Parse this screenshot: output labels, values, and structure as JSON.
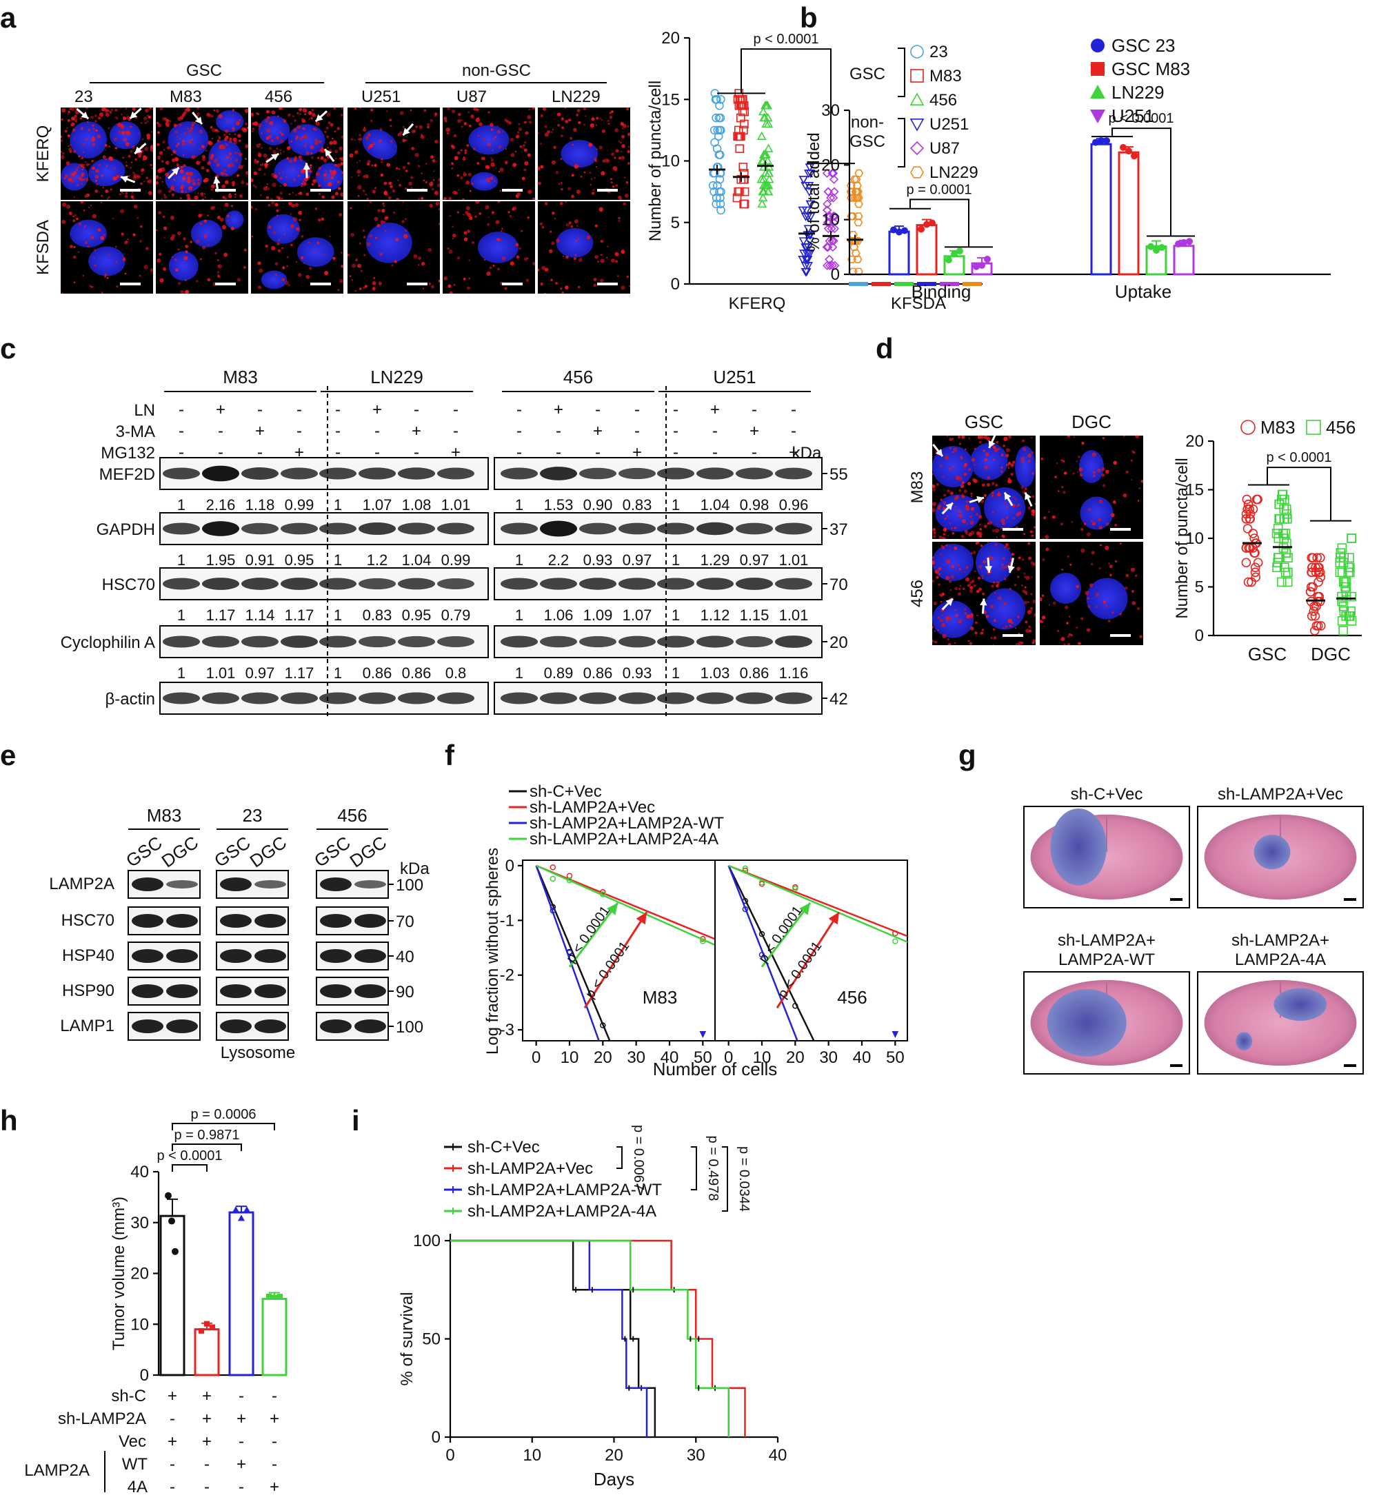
{
  "panels": {
    "a": "a",
    "b": "b",
    "c": "c",
    "d": "d",
    "e": "e",
    "f": "f",
    "g": "g",
    "h": "h",
    "i": "i"
  },
  "a": {
    "group_gsc": "GSC",
    "group_non_gsc": "non-GSC",
    "columns": [
      "23",
      "M83",
      "456",
      "U251",
      "U87",
      "LN229"
    ],
    "rows": [
      "KFERQ",
      "KFSDA"
    ]
  },
  "d": {
    "columns": [
      "GSC",
      "DGC"
    ],
    "rows": [
      "M83",
      "456"
    ]
  },
  "c": {
    "groups": [
      "M83",
      "LN229",
      "456",
      "U251"
    ],
    "treatments": [
      {
        "label": "LN",
        "signs": [
          "-",
          "+",
          "-",
          "-"
        ]
      },
      {
        "label": "3-MA",
        "signs": [
          "-",
          "-",
          "+",
          "-"
        ]
      },
      {
        "label": "MG132",
        "signs": [
          "-",
          "-",
          "-",
          "+"
        ]
      }
    ],
    "kda": "kDa",
    "bands": [
      {
        "name": "MEF2D",
        "kda": "55",
        "ratios": [
          "1",
          "2.16",
          "1.18",
          "0.99",
          "1",
          "1.07",
          "1.08",
          "1.01",
          "1",
          "1.53",
          "0.90",
          "0.83",
          "1",
          "1.04",
          "0.98",
          "0.96"
        ]
      },
      {
        "name": "GAPDH",
        "kda": "37",
        "ratios": [
          "1",
          "1.95",
          "0.91",
          "0.95",
          "1",
          "1.2",
          "1.04",
          "0.99",
          "1",
          "2.2",
          "0.93",
          "0.97",
          "1",
          "1.29",
          "0.97",
          "1.01"
        ]
      },
      {
        "name": "HSC70",
        "kda": "70",
        "ratios": [
          "1",
          "1.17",
          "1.14",
          "1.17",
          "1",
          "0.83",
          "0.95",
          "0.79",
          "1",
          "1.06",
          "1.09",
          "1.07",
          "1",
          "1.12",
          "1.15",
          "1.01"
        ]
      },
      {
        "name": "Cyclophilin A",
        "kda": "20",
        "ratios": [
          "1",
          "1.01",
          "0.97",
          "1.17",
          "1",
          "0.86",
          "0.86",
          "0.8",
          "1",
          "0.89",
          "0.86",
          "0.93",
          "1",
          "1.03",
          "0.86",
          "1.16"
        ]
      },
      {
        "name": "β-actin",
        "kda": "42",
        "ratios": []
      }
    ]
  },
  "e": {
    "groups": [
      "M83",
      "23",
      "456"
    ],
    "lanes": [
      "GSC",
      "DGC"
    ],
    "kda": "kDa",
    "bands": [
      {
        "name": "LAMP2A",
        "kda": "100"
      },
      {
        "name": "HSC70",
        "kda": "70"
      },
      {
        "name": "HSP40",
        "kda": "40"
      },
      {
        "name": "HSP90",
        "kda": "90"
      },
      {
        "name": "LAMP1",
        "kda": "100"
      }
    ],
    "footer": "Lysosome"
  },
  "g": {
    "labels": [
      "sh-C+Vec",
      "sh-LAMP2A+Vec",
      "sh-LAMP2A+\nLAMP2A-WT",
      "sh-LAMP2A+\nLAMP2A-4A"
    ]
  },
  "colors": {
    "black": "#111111",
    "red": "#e8231f",
    "blue": "#2222d8",
    "green": "#3ed23b",
    "lightblue": "#4aa3e0",
    "orange": "#f08a1c",
    "purple": "#b038e0"
  },
  "chart_data": [
    {
      "id": "a-chart",
      "type": "scatter",
      "ylabel": "Number of puncta/cell",
      "ylim": [
        0,
        20
      ],
      "yticks": [
        0,
        5,
        10,
        15,
        20
      ],
      "categories": [
        "KFERQ",
        "KFSDA"
      ],
      "legend": {
        "group1": "GSC",
        "group2": "non-\nGSC",
        "items": [
          "23",
          "M83",
          "456",
          "U251",
          "U87",
          "LN229"
        ]
      },
      "series": [
        {
          "name": "23",
          "marker": "circle",
          "color": "#4aa3e0",
          "mean": [
            9.3,
            0
          ]
        },
        {
          "name": "M83",
          "marker": "square",
          "color": "#e8231f",
          "mean": [
            8.7,
            0
          ]
        },
        {
          "name": "456",
          "marker": "triangle-up",
          "color": "#3ed23b",
          "mean": [
            9.6,
            0
          ]
        },
        {
          "name": "U251",
          "marker": "triangle-down",
          "color": "#2222d8",
          "mean": [
            4.1,
            0
          ]
        },
        {
          "name": "U87",
          "marker": "diamond",
          "color": "#b038e0",
          "mean": [
            3.9,
            0
          ]
        },
        {
          "name": "LN229",
          "marker": "hexagon",
          "color": "#f08a1c",
          "mean": [
            3.6,
            0
          ]
        }
      ],
      "annotation": "p < 0.0001"
    },
    {
      "id": "b-chart",
      "type": "bar",
      "ylabel": "% of total added",
      "ylim": [
        0,
        30
      ],
      "yticks": [
        0,
        10,
        20,
        30
      ],
      "categories": [
        "Binding",
        "Uptake"
      ],
      "series": [
        {
          "name": "GSC 23",
          "color": "#2222d8",
          "values": [
            7.8,
            23.8
          ]
        },
        {
          "name": "GSC M83",
          "color": "#e8231f",
          "values": [
            9.0,
            22.3
          ]
        },
        {
          "name": "LN229",
          "color": "#3ed23b",
          "values": [
            3.3,
            5.1
          ]
        },
        {
          "name": "U251",
          "color": "#b038e0",
          "values": [
            2.0,
            5.2
          ]
        }
      ],
      "annotations": [
        "p = 0.0001",
        "p < 0.0001"
      ]
    },
    {
      "id": "d-chart",
      "type": "scatter",
      "ylabel": "Number of puncta/cell",
      "ylim": [
        0,
        20
      ],
      "yticks": [
        0,
        5,
        10,
        15,
        20
      ],
      "categories": [
        "GSC",
        "DGC"
      ],
      "series": [
        {
          "name": "M83",
          "marker": "circle",
          "color": "#e8231f",
          "mean": [
            9.5,
            3.6
          ]
        },
        {
          "name": "456",
          "marker": "square",
          "color": "#3ed23b",
          "mean": [
            9.1,
            3.8
          ]
        }
      ],
      "annotation": "p < 0.0001"
    },
    {
      "id": "f-chart",
      "type": "line",
      "ylabel": "Log fraction without spheres",
      "xlabel": "Number of cells",
      "xlim": [
        -1,
        52
      ],
      "ylim": [
        -3.2,
        0.1
      ],
      "xticks": [
        0,
        10,
        20,
        30,
        40,
        50
      ],
      "yticks": [
        0,
        -1,
        -2,
        -3
      ],
      "legend": [
        "sh-C+Vec",
        "sh-LAMP2A+Vec",
        "sh-LAMP2A+LAMP2A-WT",
        "sh-LAMP2A+LAMP2A-4A"
      ],
      "panels": [
        {
          "title": "M83",
          "slopes": {
            "sh-C+Vec": -0.145,
            "sh-LAMP2A+Vec": -0.025,
            "sh-LAMP2A+LAMP2A-WT": -0.17,
            "sh-LAMP2A+LAMP2A-4A": -0.027
          }
        },
        {
          "title": "456",
          "slopes": {
            "sh-C+Vec": -0.125,
            "sh-LAMP2A+Vec": -0.024,
            "sh-LAMP2A+LAMP2A-WT": -0.155,
            "sh-LAMP2A+LAMP2A-4A": -0.026
          }
        }
      ],
      "annotations": [
        "p < 0.0001",
        "p < 0.0001"
      ]
    },
    {
      "id": "h-chart",
      "type": "bar",
      "ylabel": "Tumor volume (mm³)",
      "ylim": [
        0,
        40
      ],
      "yticks": [
        0,
        10,
        20,
        30,
        40
      ],
      "values": [
        31.3,
        9.0,
        32.0,
        15.0
      ],
      "colors": [
        "#111111",
        "#e8231f",
        "#2222d8",
        "#3ed23b"
      ],
      "rows": [
        {
          "label": "sh-C",
          "signs": [
            "+",
            "+",
            "-",
            "-"
          ]
        },
        {
          "label": "sh-LAMP2A",
          "signs": [
            "-",
            "+",
            "+",
            "+"
          ]
        },
        {
          "label": "Vec",
          "signs": [
            "+",
            "+",
            "-",
            "-"
          ]
        },
        {
          "label": "WT",
          "signs": [
            "-",
            "-",
            "+",
            "-"
          ]
        },
        {
          "label": "4A",
          "signs": [
            "-",
            "-",
            "-",
            "+"
          ]
        }
      ],
      "group_label": "LAMP2A",
      "annotations": [
        "p < 0.0001",
        "p = 0.9871",
        "p = 0.0006"
      ]
    },
    {
      "id": "i-chart",
      "type": "line",
      "ylabel": "% of survival",
      "xlabel": "Days",
      "xlim": [
        0,
        40
      ],
      "ylim": [
        0,
        100
      ],
      "xticks": [
        0,
        10,
        20,
        30,
        40
      ],
      "yticks": [
        0,
        50,
        100
      ],
      "series": [
        {
          "name": "sh-C+Vec",
          "color": "#111111",
          "steps": [
            [
              0,
              100
            ],
            [
              15,
              75
            ],
            [
              22,
              50
            ],
            [
              23,
              25
            ],
            [
              25,
              0
            ]
          ]
        },
        {
          "name": "sh-LAMP2A+Vec",
          "color": "#e8231f",
          "steps": [
            [
              0,
              100
            ],
            [
              27,
              75
            ],
            [
              30,
              50
            ],
            [
              32,
              25
            ],
            [
              36,
              0
            ]
          ]
        },
        {
          "name": "sh-LAMP2A+LAMP2A-WT",
          "color": "#2222d8",
          "steps": [
            [
              0,
              100
            ],
            [
              17,
              75
            ],
            [
              21,
              50
            ],
            [
              21.5,
              25
            ],
            [
              24,
              0
            ]
          ]
        },
        {
          "name": "sh-LAMP2A+LAMP2A-4A",
          "color": "#3ed23b",
          "steps": [
            [
              0,
              100
            ],
            [
              22,
              75
            ],
            [
              29,
              50
            ],
            [
              30,
              25
            ],
            [
              34,
              0
            ]
          ]
        }
      ],
      "annotations": [
        "p = 0.0067",
        "p = 0.4978",
        "p = 0.0344"
      ]
    }
  ]
}
